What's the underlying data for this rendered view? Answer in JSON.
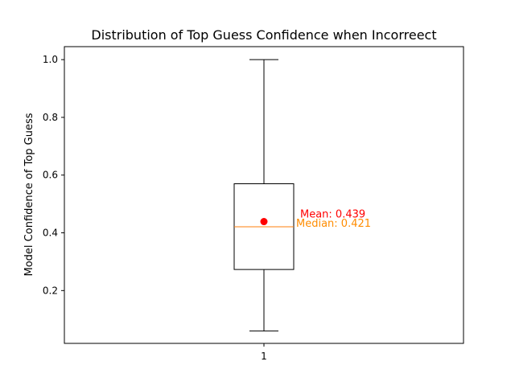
{
  "chart_data": {
    "type": "box",
    "title": "Distribution of Top Guess Confidence when Incorreect",
    "xlabel": "",
    "ylabel": "Model Confidence of Top Guess",
    "categories": [
      "1"
    ],
    "ylim": [
      0.017,
      1.045
    ],
    "yticks": [
      0.2,
      0.4,
      0.6,
      0.8,
      1.0
    ],
    "ytick_labels": [
      "0.2",
      "0.4",
      "0.6",
      "0.8",
      "1.0"
    ],
    "boxes": [
      {
        "category": "1",
        "whisker_low": 0.06,
        "q1": 0.273,
        "median": 0.421,
        "q3": 0.57,
        "whisker_high": 1.0,
        "mean": 0.439
      }
    ],
    "annotations": {
      "mean_text": "Mean: 0.439",
      "median_text": "Median:  0.421"
    },
    "colors": {
      "box": "#000000",
      "median": "#ff7f0e",
      "mean_marker": "#ff0000",
      "mean_text": "#ff0000",
      "median_text": "#ff8c00"
    },
    "grid": false
  }
}
